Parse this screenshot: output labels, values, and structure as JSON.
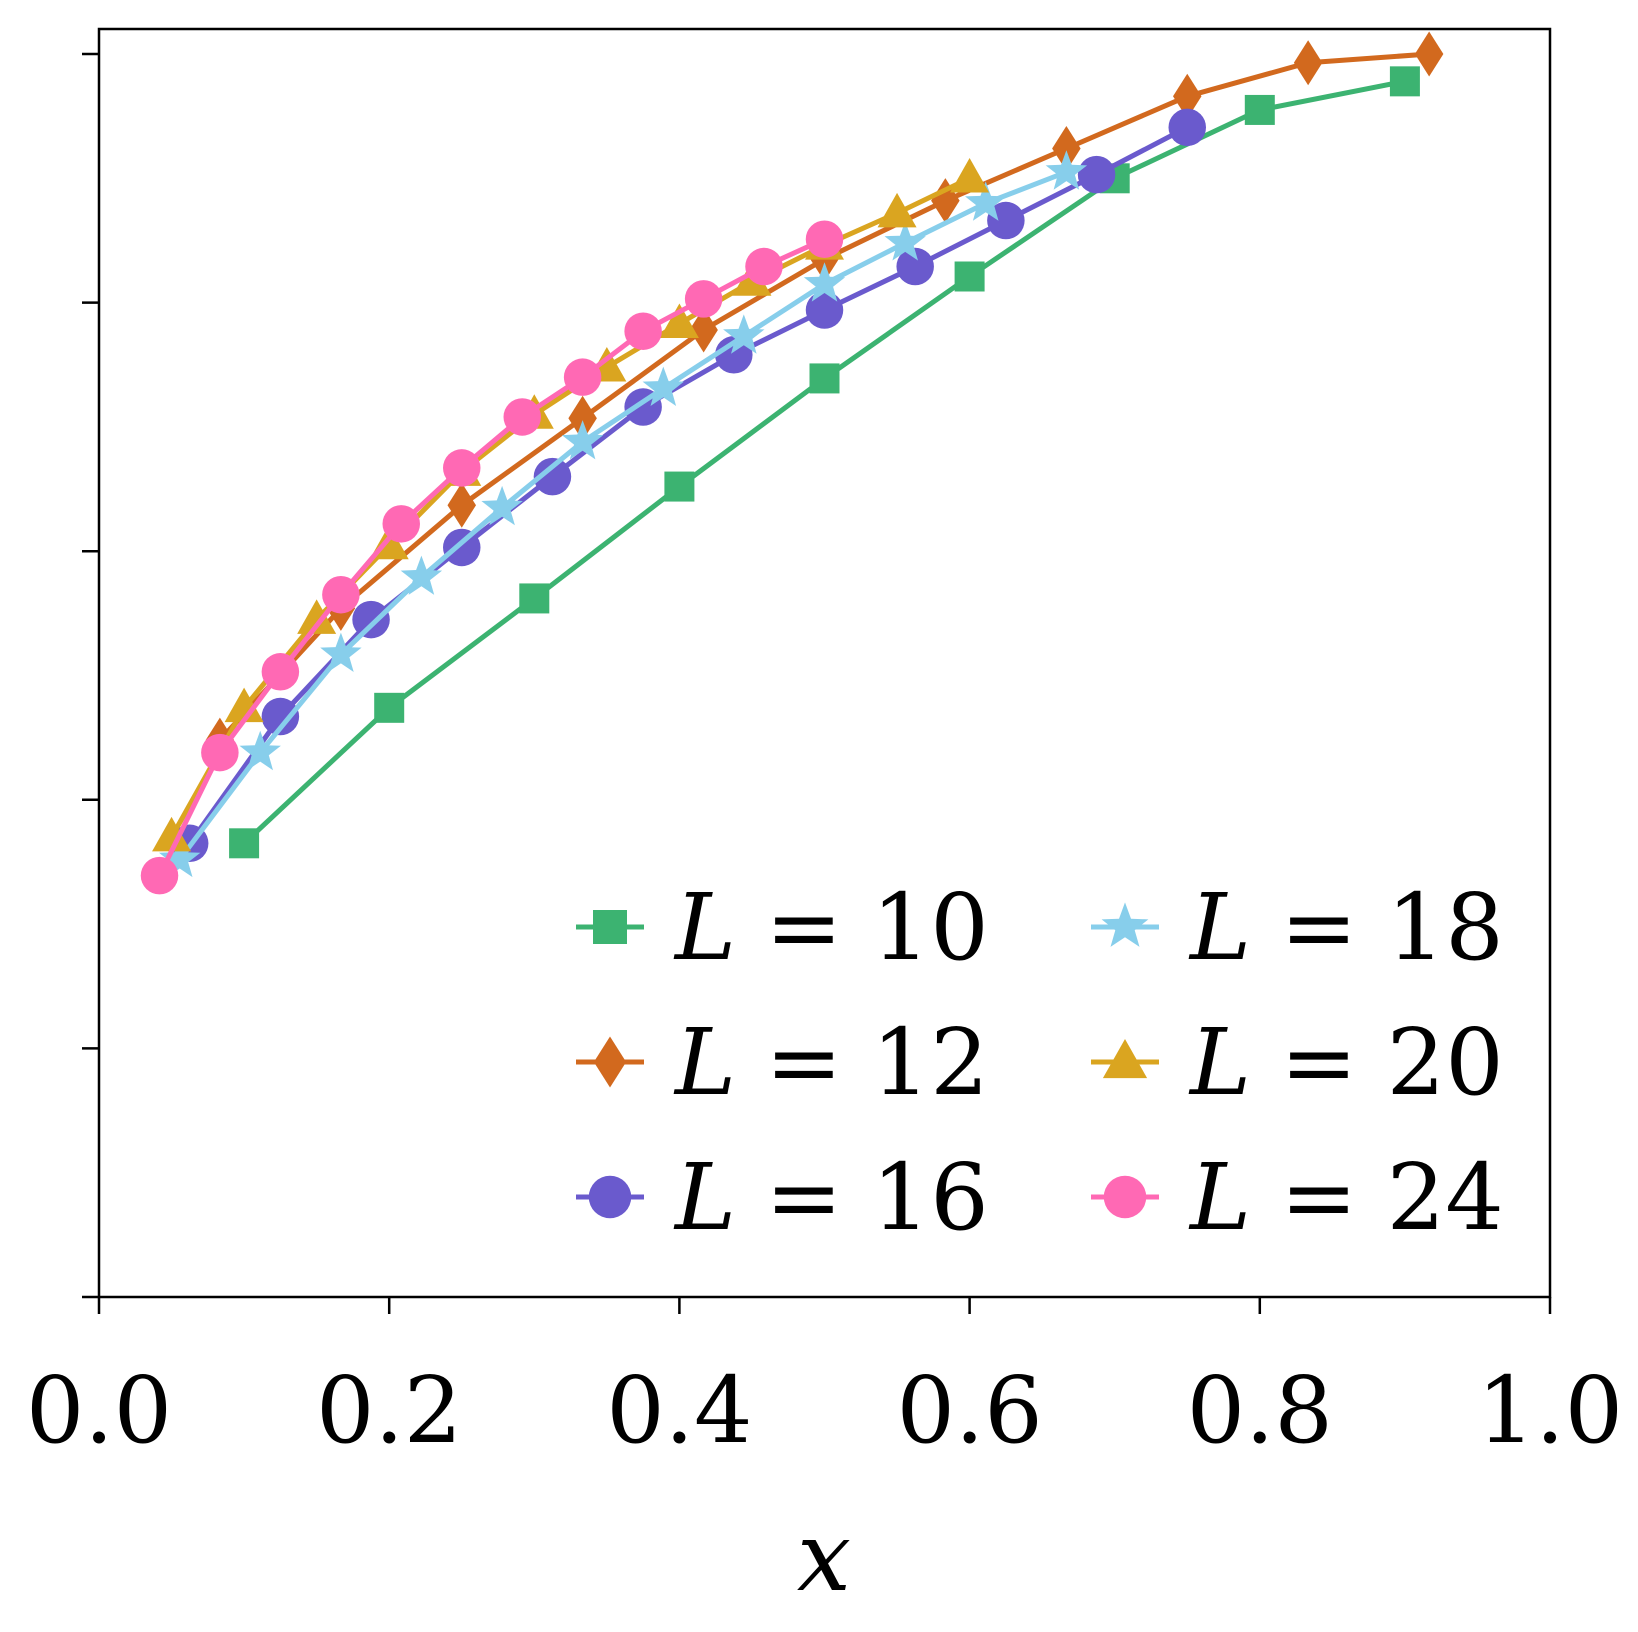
{
  "chart_data": {
    "type": "line",
    "title": "",
    "xlabel": "x",
    "ylabel": "",
    "xlim": [
      0.0,
      1.0
    ],
    "ylim": [
      0.0,
      1.0
    ],
    "xticks": [
      "0.0",
      "0.2",
      "0.4",
      "0.6",
      "0.8",
      "1.0"
    ],
    "yticks": [
      0.0,
      0.2,
      0.4,
      0.6,
      0.8,
      1.0
    ],
    "ytick_labels_shown": false,
    "grid": false,
    "legend": {
      "placement": "lower-right",
      "columns": 2,
      "var": "L",
      "eq": "="
    },
    "series": [
      {
        "name": "10",
        "color": "#3cb371",
        "marker": "square",
        "x": [
          0.1,
          0.2,
          0.3,
          0.4,
          0.5,
          0.6,
          0.7,
          0.8,
          0.9
        ],
        "y": [
          0.365,
          0.474,
          0.562,
          0.652,
          0.739,
          0.821,
          0.9,
          0.955,
          0.978
        ]
      },
      {
        "name": "12",
        "color": "#d2691e",
        "marker": "diamond",
        "x": [
          0.0833,
          0.1667,
          0.25,
          0.3333,
          0.4167,
          0.5,
          0.5833,
          0.6667,
          0.75,
          0.8333,
          0.9167
        ],
        "y": [
          0.448,
          0.554,
          0.637,
          0.707,
          0.778,
          0.835,
          0.882,
          0.924,
          0.966,
          0.993,
          1.0
        ]
      },
      {
        "name": "16",
        "color": "#6a5acd",
        "marker": "circle",
        "x": [
          0.0625,
          0.125,
          0.1875,
          0.25,
          0.3125,
          0.375,
          0.4375,
          0.5,
          0.5625,
          0.625,
          0.6875,
          0.75
        ],
        "y": [
          0.365,
          0.467,
          0.545,
          0.603,
          0.66,
          0.716,
          0.758,
          0.794,
          0.829,
          0.866,
          0.903,
          0.941
        ]
      },
      {
        "name": "18",
        "color": "#87ceeb",
        "marker": "star",
        "x": [
          0.0556,
          0.1111,
          0.1667,
          0.2222,
          0.2778,
          0.3333,
          0.3889,
          0.4444,
          0.5,
          0.5556,
          0.6111,
          0.6667
        ],
        "y": [
          0.352,
          0.438,
          0.517,
          0.579,
          0.635,
          0.688,
          0.731,
          0.773,
          0.815,
          0.848,
          0.88,
          0.905
        ]
      },
      {
        "name": "20",
        "color": "#daa520",
        "marker": "triangle",
        "x": [
          0.05,
          0.1,
          0.15,
          0.2,
          0.25,
          0.3,
          0.35,
          0.4,
          0.45,
          0.5,
          0.55,
          0.6
        ],
        "y": [
          0.37,
          0.474,
          0.545,
          0.605,
          0.664,
          0.71,
          0.748,
          0.783,
          0.817,
          0.846,
          0.872,
          0.9
        ]
      },
      {
        "name": "24",
        "color": "#ff69b4",
        "marker": "circle",
        "x": [
          0.0417,
          0.0833,
          0.125,
          0.1667,
          0.2083,
          0.25,
          0.2917,
          0.3333,
          0.375,
          0.4167,
          0.4583,
          0.5
        ],
        "y": [
          0.339,
          0.438,
          0.503,
          0.565,
          0.622,
          0.667,
          0.708,
          0.74,
          0.777,
          0.803,
          0.829,
          0.851
        ]
      }
    ]
  }
}
